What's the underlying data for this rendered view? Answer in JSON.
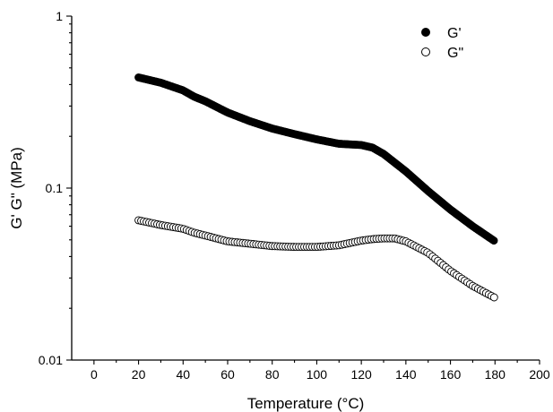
{
  "chart_data": {
    "type": "scatter",
    "xlabel": "Temperature (°C)",
    "ylabel": "G' G\" (MPa)",
    "xlim": [
      -10,
      200
    ],
    "ylim": [
      0.01,
      1
    ],
    "yscale": "log",
    "xticks": [
      0,
      20,
      40,
      60,
      80,
      100,
      120,
      140,
      160,
      180,
      200
    ],
    "xtick_labels": [
      "0",
      "20",
      "40",
      "60",
      "80",
      "100",
      "120",
      "140",
      "160",
      "180",
      "200"
    ],
    "yticks": [
      0.01,
      0.1,
      1
    ],
    "ytick_labels": [
      "0.01",
      "0.1",
      "1"
    ],
    "grid": false,
    "legend_position": "top-right",
    "series": [
      {
        "name": "G'",
        "marker": "filled-circle",
        "color": "#000000",
        "x_range": [
          20,
          180
        ],
        "points": [
          [
            20,
            0.44
          ],
          [
            30,
            0.41
          ],
          [
            40,
            0.37
          ],
          [
            45,
            0.34
          ],
          [
            50,
            0.32
          ],
          [
            60,
            0.275
          ],
          [
            70,
            0.245
          ],
          [
            80,
            0.222
          ],
          [
            90,
            0.206
          ],
          [
            100,
            0.192
          ],
          [
            110,
            0.181
          ],
          [
            120,
            0.178
          ],
          [
            125,
            0.172
          ],
          [
            130,
            0.158
          ],
          [
            140,
            0.125
          ],
          [
            150,
            0.096
          ],
          [
            160,
            0.075
          ],
          [
            170,
            0.06
          ],
          [
            180,
            0.049
          ]
        ]
      },
      {
        "name": "G\"",
        "marker": "open-circle",
        "color": "#000000",
        "x_range": [
          20,
          180
        ],
        "points": [
          [
            20,
            0.065
          ],
          [
            30,
            0.061
          ],
          [
            40,
            0.058
          ],
          [
            45,
            0.055
          ],
          [
            50,
            0.053
          ],
          [
            60,
            0.049
          ],
          [
            70,
            0.0475
          ],
          [
            80,
            0.046
          ],
          [
            90,
            0.0455
          ],
          [
            100,
            0.0455
          ],
          [
            110,
            0.0465
          ],
          [
            115,
            0.048
          ],
          [
            120,
            0.0495
          ],
          [
            125,
            0.0505
          ],
          [
            130,
            0.051
          ],
          [
            135,
            0.051
          ],
          [
            140,
            0.049
          ],
          [
            150,
            0.042
          ],
          [
            160,
            0.033
          ],
          [
            170,
            0.027
          ],
          [
            180,
            0.023
          ]
        ]
      }
    ]
  }
}
